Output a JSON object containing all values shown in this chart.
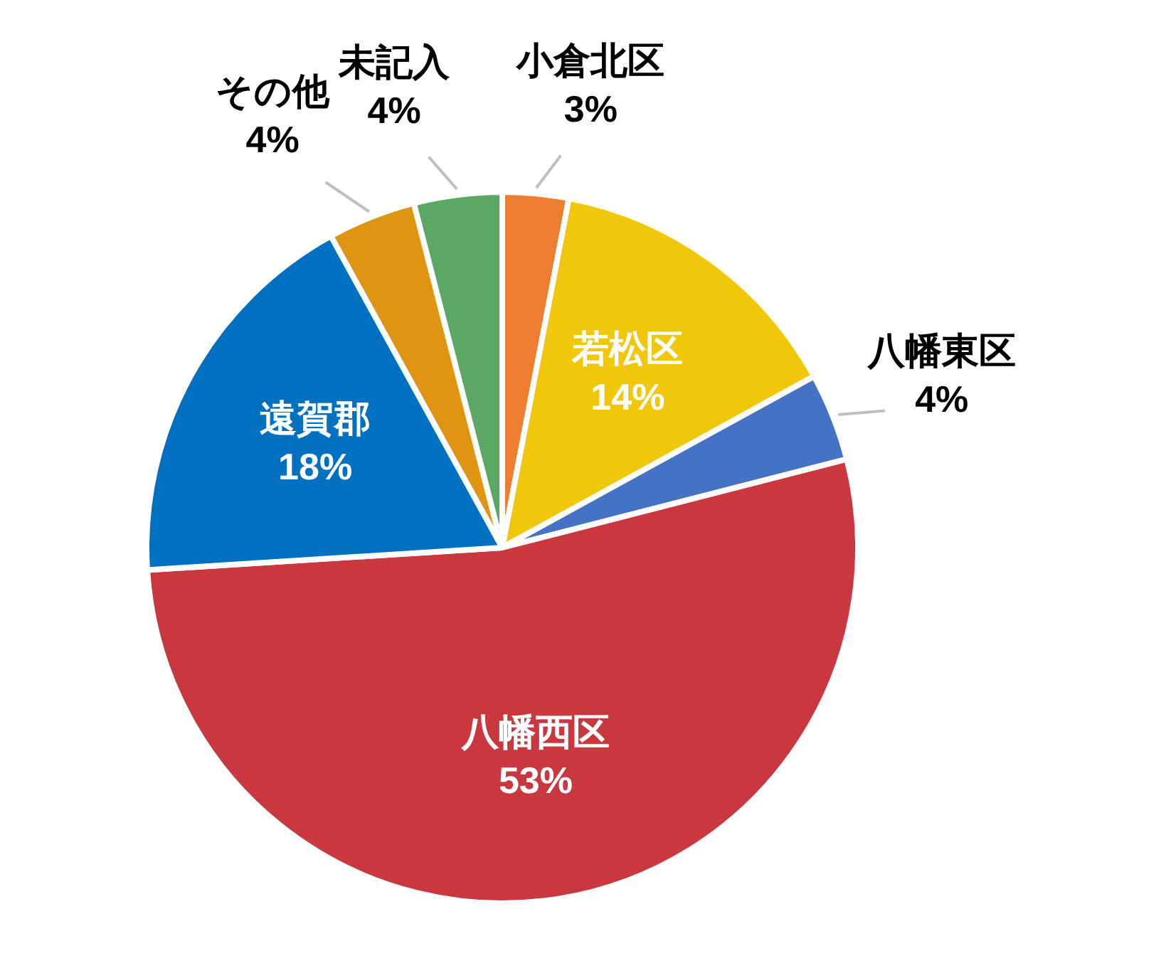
{
  "chart_data": {
    "type": "pie",
    "categories": [
      "小倉北区",
      "若松区",
      "八幡東区",
      "八幡西区",
      "遠賀郡",
      "その他",
      "未記入"
    ],
    "values": [
      3,
      14,
      4,
      53,
      18,
      4,
      4
    ],
    "value_labels": [
      "3%",
      "14%",
      "4%",
      "53%",
      "18%",
      "4%",
      "4%"
    ],
    "colors": [
      "#ed7d31",
      "#f0c70a",
      "#4472c4",
      "#c9383f",
      "#0070c0",
      "#e09512",
      "#5aa864"
    ],
    "legend": false
  }
}
